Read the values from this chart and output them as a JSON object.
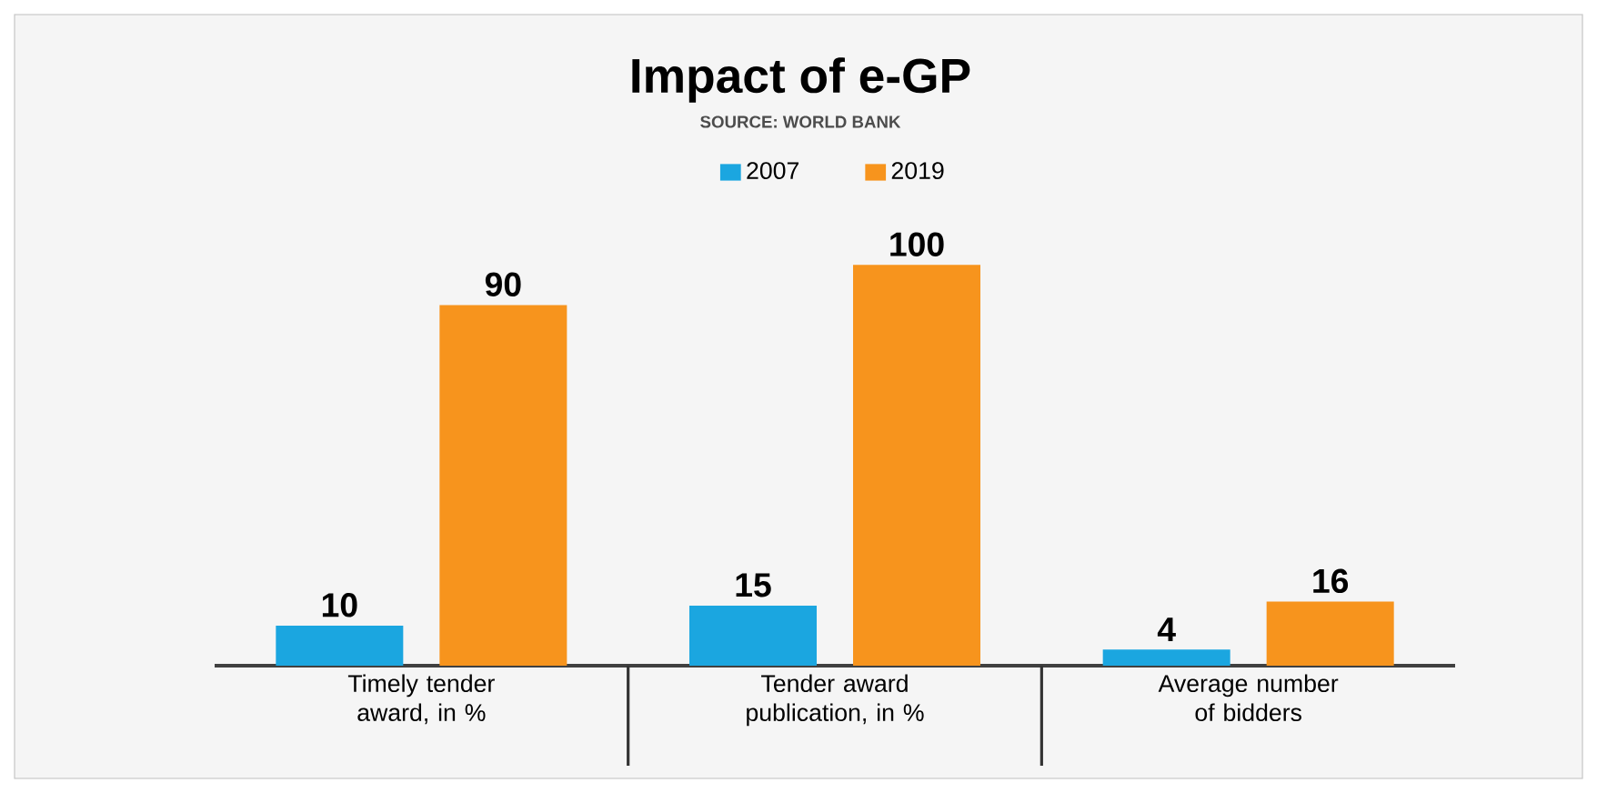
{
  "chart_data": {
    "type": "bar",
    "title": "Impact of e-GP",
    "subtitle": "SOURCE: WORLD BANK",
    "categories": [
      "Timely tender award, in %",
      "Tender award publication, in %",
      "Average number of bidders"
    ],
    "series": [
      {
        "name": "2007",
        "color": "#1ba6e0",
        "values": [
          10,
          15,
          4
        ]
      },
      {
        "name": "2019",
        "color": "#f7941d",
        "values": [
          90,
          100,
          16
        ]
      }
    ],
    "data_labels": true,
    "legend": "top"
  }
}
